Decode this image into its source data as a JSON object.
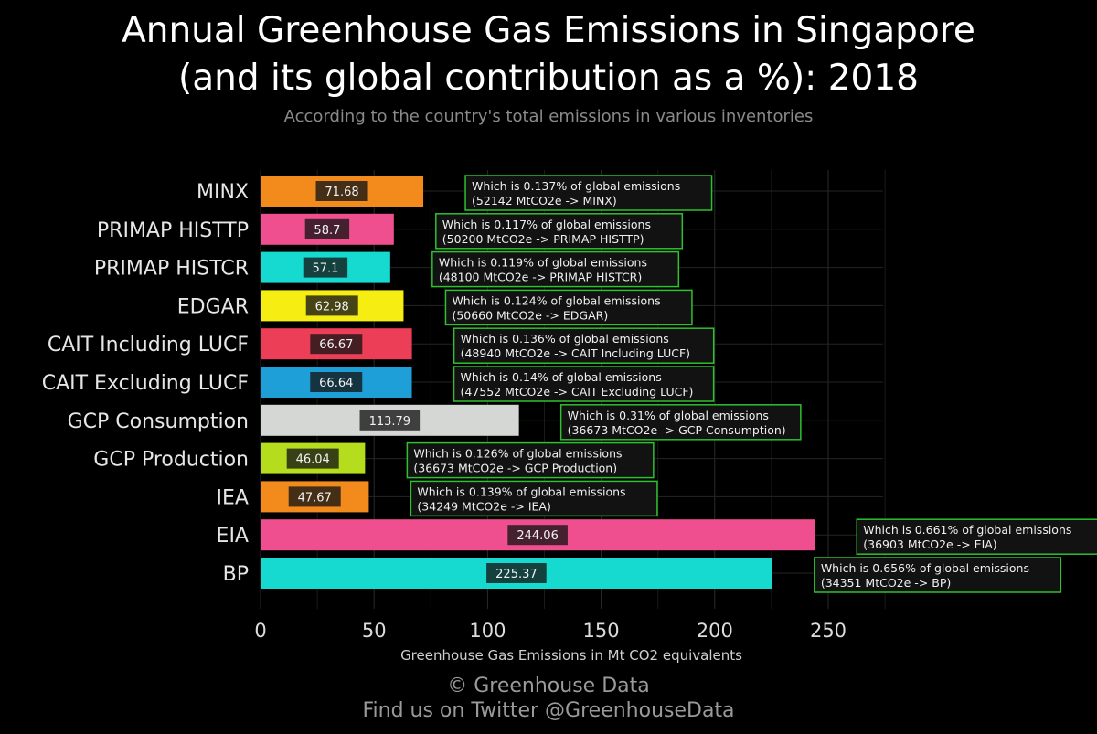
{
  "title_line1": "Annual Greenhouse Gas Emissions in Singapore",
  "title_line2": "(and its global contribution as a %): 2018",
  "subtitle": "According to the country's total emissions in various inventories",
  "footer_line1": "© Greenhouse Data",
  "footer_line2": "Find us on Twitter @GreenhouseData",
  "chart_data": {
    "type": "bar",
    "orientation": "horizontal",
    "xlabel": "Greenhouse Gas Emissions in Mt CO2 equivalents",
    "xlim": [
      0,
      275
    ],
    "xticks": [
      "0",
      "50",
      "100",
      "150",
      "200",
      "250"
    ],
    "xtick_values": [
      0,
      50,
      100,
      150,
      200,
      250
    ],
    "grid": true,
    "categories": [
      "MINX",
      "PRIMAP HISTTP",
      "PRIMAP HISTCR",
      "EDGAR",
      "CAIT Including LUCF",
      "CAIT Excluding LUCF",
      "GCP Consumption",
      "GCP Production",
      "IEA",
      "EIA",
      "BP"
    ],
    "values": [
      71.68,
      58.7,
      57.1,
      62.98,
      66.67,
      66.64,
      113.79,
      46.04,
      47.67,
      244.06,
      225.37
    ],
    "value_labels": [
      "71.68",
      "58.7",
      "57.1",
      "62.98",
      "66.67",
      "66.64",
      "113.79",
      "46.04",
      "47.67",
      "244.06",
      "225.37"
    ],
    "colors": [
      "#f28a1c",
      "#ef4f8f",
      "#16d9d0",
      "#f6ee12",
      "#ec3f57",
      "#1f9fd8",
      "#d4d7d4",
      "#b5dc1d",
      "#f28a1c",
      "#ef4f8f",
      "#16d9d0"
    ],
    "annotations": [
      {
        "line1": "Which is 0.137% of global emissions",
        "line2": "(52142 MtCO2e -> MINX)"
      },
      {
        "line1": "Which is 0.117% of global emissions",
        "line2": "(50200 MtCO2e -> PRIMAP HISTTP)"
      },
      {
        "line1": "Which is 0.119% of global emissions",
        "line2": "(48100 MtCO2e -> PRIMAP HISTCR)"
      },
      {
        "line1": "Which is 0.124% of global emissions",
        "line2": "(50660 MtCO2e -> EDGAR)"
      },
      {
        "line1": "Which is 0.136% of global emissions",
        "line2": "(48940 MtCO2e -> CAIT Including LUCF)"
      },
      {
        "line1": "Which is 0.14% of global emissions",
        "line2": "(47552 MtCO2e -> CAIT Excluding LUCF)"
      },
      {
        "line1": "Which is 0.31% of global emissions",
        "line2": "(36673 MtCO2e -> GCP Consumption)"
      },
      {
        "line1": "Which is 0.126% of global emissions",
        "line2": "(36673 MtCO2e -> GCP Production)"
      },
      {
        "line1": "Which is 0.139% of global emissions",
        "line2": "(34249 MtCO2e -> IEA)"
      },
      {
        "line1": "Which is 0.661% of global emissions",
        "line2": "(36903 MtCO2e -> EIA)"
      },
      {
        "line1": "Which is 0.656% of global emissions",
        "line2": "(34351 MtCO2e -> BP)"
      }
    ],
    "annotation_border_color": "#2fbf2f",
    "connector_color": "#1a9a1a"
  }
}
